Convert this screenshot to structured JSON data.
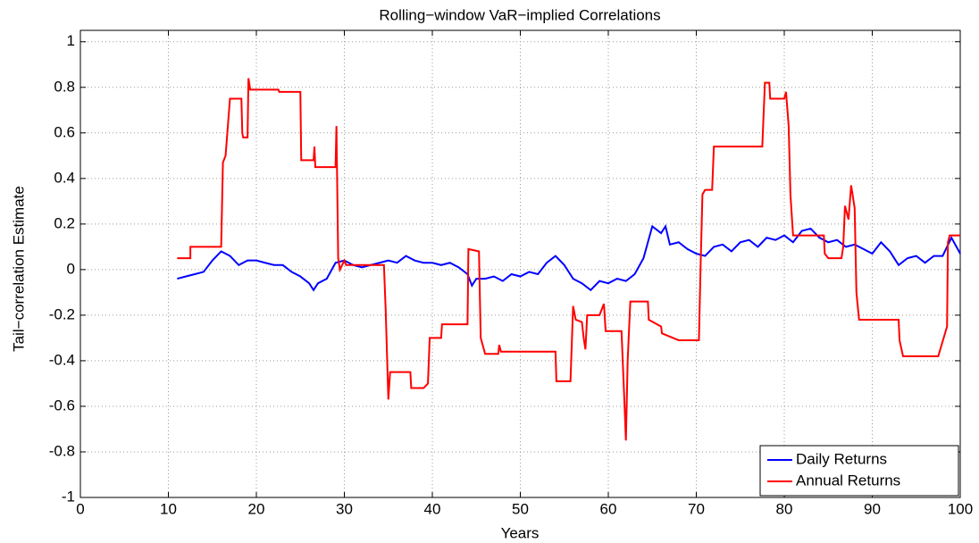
{
  "chart_data": {
    "type": "line",
    "title": "Rolling−window VaR−implied Correlations",
    "xlabel": "Years",
    "ylabel": "Tail−correlation Estimate",
    "xlim": [
      0,
      100
    ],
    "ylim": [
      -1,
      1.05
    ],
    "xticks": [
      0,
      10,
      20,
      30,
      40,
      50,
      60,
      70,
      80,
      90,
      100
    ],
    "yticks": [
      -1,
      -0.8,
      -0.6,
      -0.4,
      -0.2,
      0,
      0.2,
      0.4,
      0.6,
      0.8,
      1
    ],
    "grid": true,
    "legend": "lower right",
    "series": [
      {
        "name": "Daily Returns",
        "color": "#0000ff",
        "x": [
          11,
          12,
          13,
          14,
          15,
          16,
          17,
          18,
          19,
          20,
          21,
          22,
          23,
          24,
          25,
          26,
          26.5,
          27,
          28,
          29,
          30,
          31,
          32,
          33,
          34,
          35,
          36,
          37,
          38,
          39,
          40,
          41,
          42,
          43,
          44,
          44.5,
          45,
          46,
          47,
          48,
          49,
          50,
          51,
          52,
          53,
          54,
          55,
          56,
          57,
          58,
          59,
          60,
          61,
          62,
          63,
          64,
          65,
          66,
          66.5,
          67,
          68,
          69,
          70,
          71,
          72,
          73,
          74,
          75,
          76,
          77,
          78,
          79,
          80,
          81,
          82,
          83,
          84,
          85,
          86,
          87,
          88,
          89,
          90,
          91,
          92,
          93,
          94,
          95,
          96,
          97,
          98,
          99,
          100
        ],
        "values": [
          -0.04,
          -0.03,
          -0.02,
          -0.01,
          0.04,
          0.08,
          0.06,
          0.02,
          0.04,
          0.04,
          0.03,
          0.02,
          0.02,
          -0.01,
          -0.03,
          -0.06,
          -0.09,
          -0.06,
          -0.04,
          0.03,
          0.04,
          0.02,
          0.01,
          0.02,
          0.03,
          0.04,
          0.03,
          0.06,
          0.04,
          0.03,
          0.03,
          0.02,
          0.03,
          0.01,
          -0.02,
          -0.07,
          -0.04,
          -0.04,
          -0.03,
          -0.05,
          -0.02,
          -0.03,
          -0.01,
          -0.02,
          0.03,
          0.06,
          0.02,
          -0.04,
          -0.06,
          -0.09,
          -0.05,
          -0.06,
          -0.04,
          -0.05,
          -0.02,
          0.05,
          0.19,
          0.16,
          0.19,
          0.11,
          0.12,
          0.09,
          0.07,
          0.06,
          0.1,
          0.11,
          0.08,
          0.12,
          0.13,
          0.1,
          0.14,
          0.13,
          0.15,
          0.12,
          0.17,
          0.18,
          0.14,
          0.12,
          0.13,
          0.1,
          0.11,
          0.09,
          0.07,
          0.12,
          0.08,
          0.02,
          0.05,
          0.06,
          0.03,
          0.06,
          0.06,
          0.14,
          0.07
        ]
      },
      {
        "name": "Annual Returns",
        "color": "#ff0000",
        "x": [
          11,
          12.5,
          12.5,
          16,
          16.2,
          16.5,
          17,
          18.3,
          18.4,
          18.5,
          19,
          19.1,
          19.3,
          22.5,
          22.6,
          25,
          25.1,
          26.5,
          26.6,
          26.7,
          29,
          29.1,
          29.3,
          29.5,
          30,
          30.2,
          34.5,
          34.7,
          35,
          35.2,
          37.5,
          37.6,
          39,
          39.5,
          39.7,
          41,
          41.1,
          44,
          44.1,
          45.3,
          45.5,
          46,
          47.5,
          47.6,
          47.8,
          54,
          54.1,
          55.7,
          56,
          56.3,
          57,
          57.2,
          57.4,
          57.6,
          59,
          59.5,
          59.7,
          61.5,
          61.8,
          62,
          62.2,
          62.5,
          64.5,
          64.6,
          66,
          66.1,
          68,
          70.3,
          70.5,
          70.7,
          71,
          71.8,
          72,
          77.5,
          77.8,
          78.3,
          78.4,
          80,
          80.2,
          80.5,
          80.7,
          81,
          84.5,
          84.6,
          85,
          86.5,
          86.7,
          86.9,
          87.3,
          87.6,
          88,
          88.2,
          88.5,
          93,
          93.1,
          93.5,
          97.5,
          98.5,
          98.6,
          98.8,
          100
        ],
        "values": [
          0.05,
          0.05,
          0.1,
          0.1,
          0.47,
          0.5,
          0.75,
          0.75,
          0.6,
          0.58,
          0.58,
          0.84,
          0.79,
          0.79,
          0.78,
          0.78,
          0.48,
          0.48,
          0.54,
          0.45,
          0.45,
          0.63,
          0.05,
          0.0,
          0.04,
          0.02,
          0.02,
          -0.18,
          -0.57,
          -0.45,
          -0.45,
          -0.52,
          -0.52,
          -0.5,
          -0.3,
          -0.3,
          -0.24,
          -0.24,
          0.09,
          0.08,
          -0.3,
          -0.37,
          -0.37,
          -0.33,
          -0.36,
          -0.36,
          -0.49,
          -0.49,
          -0.16,
          -0.22,
          -0.23,
          -0.3,
          -0.35,
          -0.2,
          -0.2,
          -0.15,
          -0.27,
          -0.27,
          -0.55,
          -0.75,
          -0.4,
          -0.14,
          -0.14,
          -0.22,
          -0.25,
          -0.28,
          -0.31,
          -0.31,
          0.03,
          0.33,
          0.35,
          0.35,
          0.54,
          0.54,
          0.82,
          0.82,
          0.75,
          0.75,
          0.78,
          0.63,
          0.33,
          0.15,
          0.15,
          0.07,
          0.05,
          0.05,
          0.1,
          0.28,
          0.22,
          0.37,
          0.27,
          -0.1,
          -0.22,
          -0.22,
          -0.31,
          -0.38,
          -0.38,
          -0.25,
          0.12,
          0.15,
          0.15
        ]
      }
    ]
  }
}
